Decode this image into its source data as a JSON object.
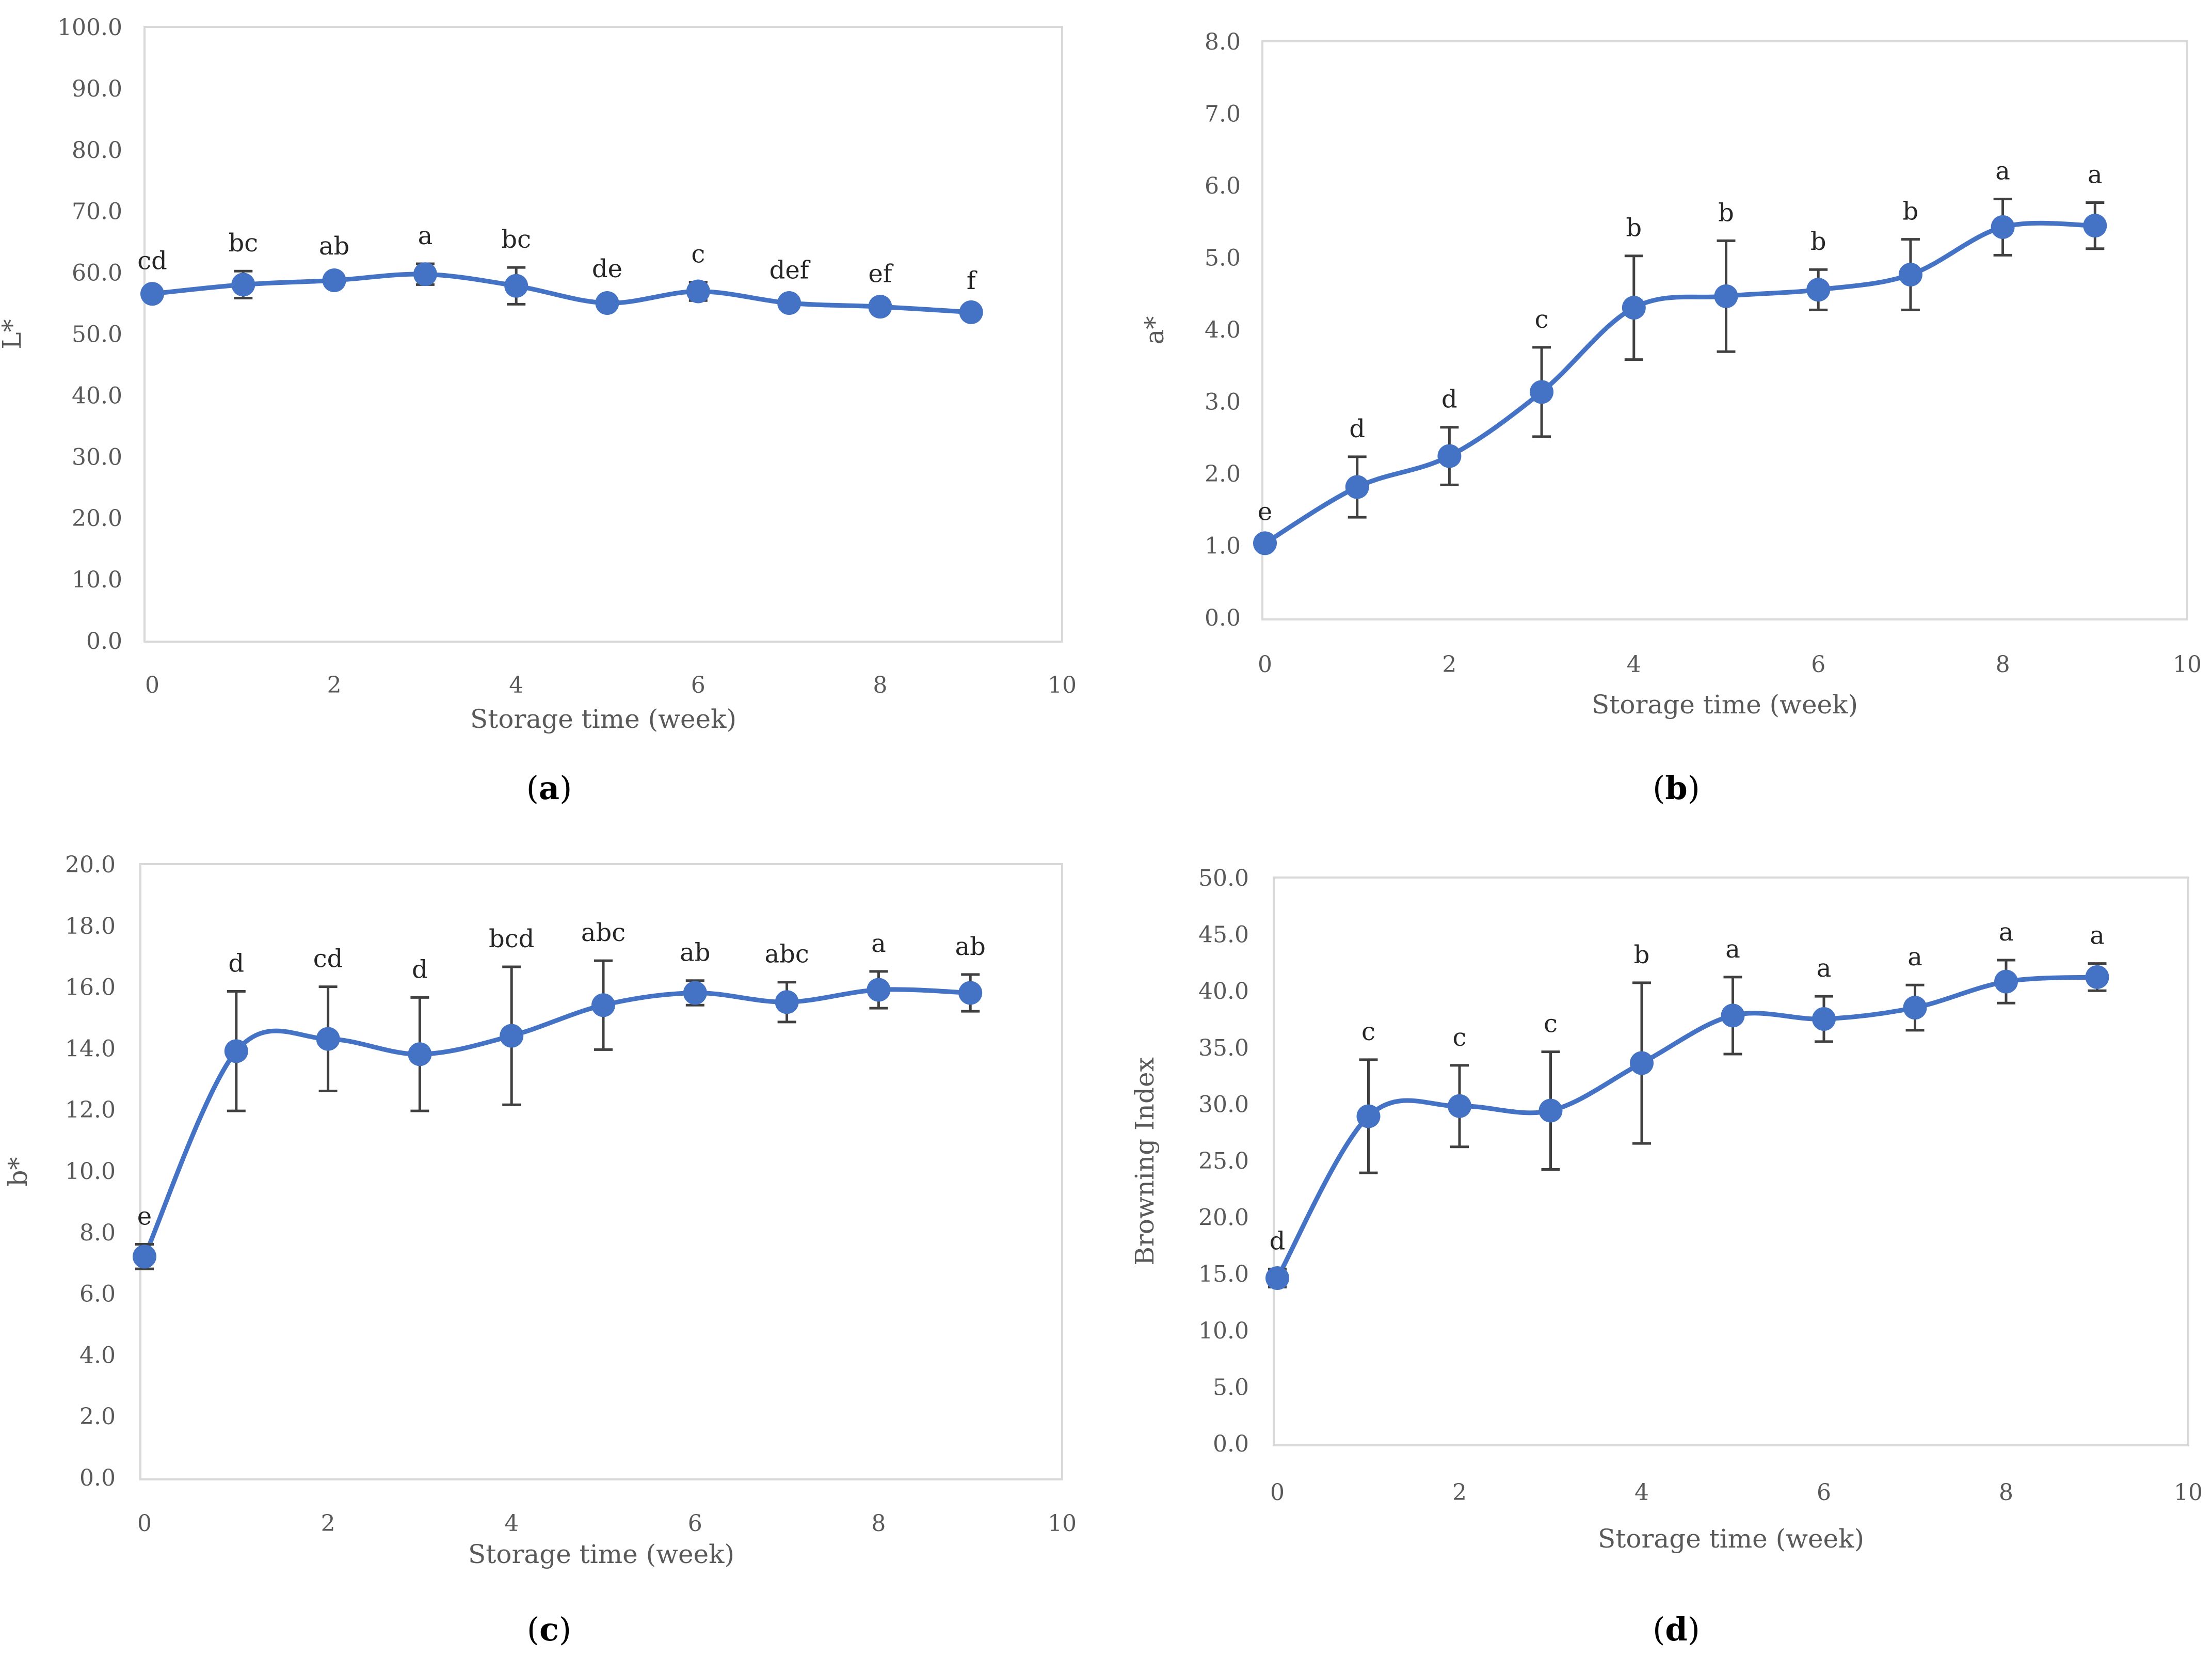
{
  "colors": {
    "series": "#4472C4",
    "error_bar": "#404040",
    "frame": "#d9d9d9"
  },
  "chart_data": [
    {
      "id": "a",
      "type": "line",
      "panel_label": "a",
      "ylabel": "L*",
      "xlabel": "Storage time (week)",
      "xlim": [
        0,
        10
      ],
      "xticks": [
        "0",
        "2",
        "4",
        "6",
        "8",
        "10"
      ],
      "ylim": [
        0,
        100
      ],
      "yticks": [
        "0.0",
        "10.0",
        "20.0",
        "30.0",
        "40.0",
        "50.0",
        "60.0",
        "70.0",
        "80.0",
        "90.0",
        "100.0"
      ],
      "x": [
        0,
        1,
        2,
        3,
        4,
        5,
        6,
        7,
        8,
        9
      ],
      "values": [
        56.5,
        58.0,
        58.7,
        59.7,
        57.8,
        55.0,
        56.9,
        55.0,
        54.4,
        53.5
      ],
      "errors": [
        0.8,
        2.2,
        1.0,
        1.7,
        3.0,
        1.0,
        1.5,
        0.8,
        0.8,
        0.6
      ],
      "letters": [
        "cd",
        "bc",
        "ab",
        "a",
        "bc",
        "de",
        "c",
        "def",
        "ef",
        "f"
      ]
    },
    {
      "id": "b",
      "type": "line",
      "panel_label": "b",
      "ylabel": "a*",
      "xlabel": "Storage time (week)",
      "xlim": [
        0,
        10
      ],
      "xticks": [
        "0",
        "2",
        "4",
        "6",
        "8",
        "10"
      ],
      "ylim": [
        0,
        8
      ],
      "yticks": [
        "0.0",
        "1.0",
        "2.0",
        "3.0",
        "4.0",
        "5.0",
        "6.0",
        "7.0",
        "8.0"
      ],
      "x": [
        0,
        1,
        2,
        3,
        4,
        5,
        6,
        7,
        8,
        9
      ],
      "values": [
        1.03,
        1.81,
        2.24,
        3.13,
        4.3,
        4.46,
        4.55,
        4.76,
        5.42,
        5.44
      ],
      "errors": [
        0.05,
        0.42,
        0.4,
        0.62,
        0.72,
        0.77,
        0.28,
        0.49,
        0.39,
        0.32
      ],
      "letters": [
        "e",
        "d",
        "d",
        "c",
        "b",
        "b",
        "b",
        "b",
        "a",
        "a"
      ]
    },
    {
      "id": "c",
      "type": "line",
      "panel_label": "c",
      "ylabel": "b*",
      "xlabel": "Storage time (week)",
      "xlim": [
        0,
        10
      ],
      "xticks": [
        "0",
        "2",
        "4",
        "6",
        "8",
        "10"
      ],
      "ylim": [
        0,
        20
      ],
      "yticks": [
        "0.0",
        "2.0",
        "4.0",
        "6.0",
        "8.0",
        "10.0",
        "12.0",
        "14.0",
        "16.0",
        "18.0",
        "20.0"
      ],
      "x": [
        0,
        1,
        2,
        3,
        4,
        5,
        6,
        7,
        8,
        9
      ],
      "values": [
        7.2,
        13.9,
        14.3,
        13.8,
        14.4,
        15.4,
        15.8,
        15.5,
        15.9,
        15.8
      ],
      "errors": [
        0.4,
        1.95,
        1.7,
        1.85,
        2.25,
        1.45,
        0.4,
        0.65,
        0.6,
        0.6
      ],
      "letters": [
        "e",
        "d",
        "cd",
        "d",
        "bcd",
        "abc",
        "ab",
        "abc",
        "a",
        "ab"
      ]
    },
    {
      "id": "d",
      "type": "line",
      "panel_label": "d",
      "ylabel": "Browning Index",
      "xlabel": "Storage time (week)",
      "xlim": [
        0,
        10
      ],
      "xticks": [
        "0",
        "2",
        "4",
        "6",
        "8",
        "10"
      ],
      "ylim": [
        0,
        50
      ],
      "yticks": [
        "0.0",
        "5.0",
        "10.0",
        "15.0",
        "20.0",
        "25.0",
        "30.0",
        "35.0",
        "40.0",
        "45.0",
        "50.0"
      ],
      "x": [
        0,
        1,
        2,
        3,
        4,
        5,
        6,
        7,
        8,
        9
      ],
      "values": [
        14.6,
        28.9,
        29.8,
        29.4,
        33.6,
        37.8,
        37.5,
        38.5,
        40.8,
        41.2
      ],
      "errors": [
        0.8,
        5.0,
        3.6,
        5.2,
        7.1,
        3.4,
        2.0,
        2.0,
        1.9,
        1.2
      ],
      "letters": [
        "d",
        "c",
        "c",
        "c",
        "b",
        "a",
        "a",
        "a",
        "a",
        "a"
      ]
    }
  ]
}
